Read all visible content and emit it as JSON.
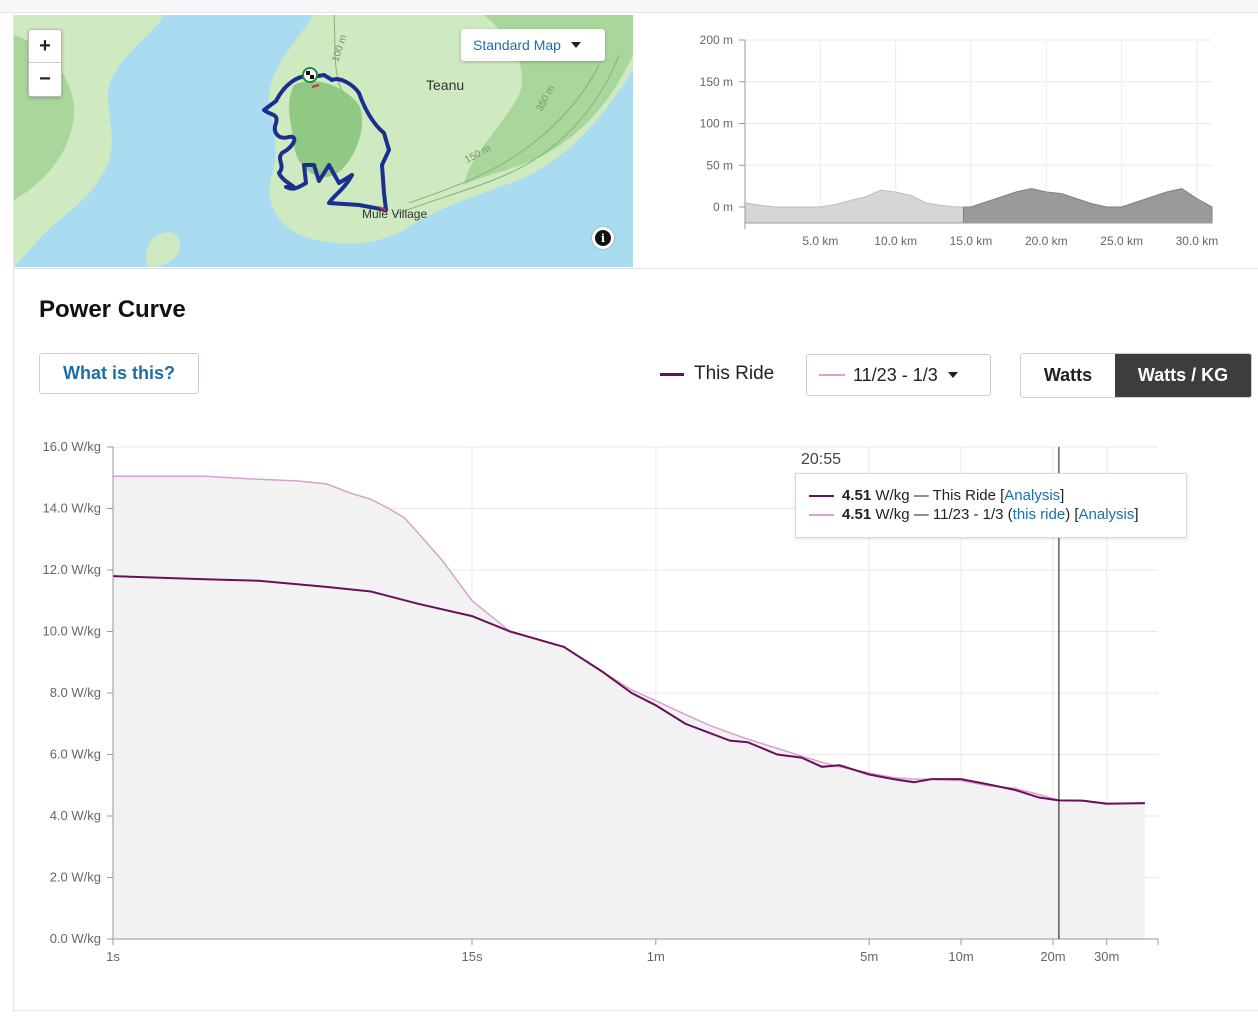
{
  "map": {
    "zoom_in": "+",
    "zoom_out": "−",
    "style_select": "Standard Map",
    "labels": {
      "town1": "Teanu",
      "town2": "Mule Village",
      "contour1": "100 m",
      "contour2": "350 m",
      "contour3": "150 m"
    },
    "info_icon": "i",
    "icons": [
      "zoom-in-icon",
      "zoom-out-icon",
      "chevron-down-icon",
      "info-icon",
      "checkered-flag-icon"
    ]
  },
  "elevation": {
    "y_ticks": [
      "200 m",
      "150 m",
      "100 m",
      "50 m",
      "0 m"
    ],
    "x_ticks": [
      "5.0 km",
      "10.0 km",
      "15.0 km",
      "20.0 km",
      "25.0 km",
      "30.0 km"
    ]
  },
  "power_curve": {
    "title": "Power Curve",
    "what_button": "What is this?",
    "legend_this_ride": "This Ride",
    "range_select": "11/23 - 1/3",
    "toggle_watts": "Watts",
    "toggle_wkg": "Watts / KG",
    "tooltip": {
      "time": "20:55",
      "row1_value": "4.51",
      "row1_unit": "W/kg — This Ride [",
      "row1_link": "Analysis",
      "row1_end": "]",
      "row2_value": "4.51",
      "row2_unit": "W/kg — 11/23 - 1/3 (",
      "row2_link1": "this ride",
      "row2_mid": ") [",
      "row2_link2": "Analysis",
      "row2_end": "]"
    },
    "colors": {
      "this_ride": "#6b0f5a",
      "range": "#d9a1cf",
      "active_toggle": "#3d3d40",
      "link": "#1d6fa8"
    }
  },
  "chart_data": [
    {
      "type": "area",
      "title": "",
      "xlabel": "",
      "ylabel": "",
      "y_unit": "m",
      "x_unit": "km",
      "ylim": [
        0,
        200
      ],
      "xlim": [
        0,
        31
      ],
      "grid": true,
      "x": [
        0,
        1,
        2,
        3,
        4,
        5,
        6,
        7,
        8,
        9,
        10,
        11,
        12,
        13,
        14,
        15,
        16,
        17,
        18,
        19,
        20,
        21,
        22,
        23,
        24,
        25,
        26,
        27,
        28,
        29,
        30,
        31
      ],
      "values": [
        5,
        2,
        0,
        0,
        0,
        0,
        3,
        8,
        12,
        20,
        18,
        14,
        5,
        2,
        0,
        0,
        6,
        12,
        18,
        22,
        18,
        16,
        10,
        4,
        0,
        0,
        6,
        12,
        18,
        22,
        10,
        0
      ],
      "highlight_from": 14.5
    },
    {
      "type": "line",
      "title": "Power Curve",
      "xlabel": "",
      "ylabel": "",
      "x_scale": "log",
      "y_unit": "W/kg",
      "ylim": [
        0,
        16
      ],
      "y_ticks": [
        0,
        2,
        4,
        6,
        8,
        10,
        12,
        14,
        16
      ],
      "y_tick_labels": [
        "0.0 W/kg",
        "2.0 W/kg",
        "4.0 W/kg",
        "6.0 W/kg",
        "8.0 W/kg",
        "10.0 W/kg",
        "12.0 W/kg",
        "14.0 W/kg",
        "16.0 W/kg"
      ],
      "x_ticks": [
        1,
        15,
        60,
        300,
        600,
        1200,
        1800
      ],
      "x_tick_labels": [
        "1s",
        "15s",
        "1m",
        "5m",
        "10m",
        "20m",
        "30m"
      ],
      "cursor_x": 1255,
      "series": [
        {
          "name": "This Ride",
          "x": [
            1,
            2,
            3,
            5,
            7,
            10,
            15,
            20,
            30,
            40,
            50,
            60,
            75,
            90,
            105,
            120,
            150,
            180,
            210,
            240,
            300,
            360,
            420,
            480,
            600,
            720,
            900,
            1080,
            1255,
            1500,
            1800,
            2400
          ],
          "y": [
            11.8,
            11.7,
            11.65,
            11.45,
            11.3,
            10.9,
            10.5,
            10.0,
            9.5,
            8.7,
            8.0,
            7.6,
            7.0,
            6.7,
            6.45,
            6.4,
            6.0,
            5.9,
            5.6,
            5.65,
            5.35,
            5.2,
            5.1,
            5.2,
            5.2,
            5.05,
            4.85,
            4.6,
            4.51,
            4.5,
            4.4,
            4.42
          ]
        },
        {
          "name": "11/23 - 1/3",
          "x": [
            1,
            2,
            3,
            4,
            5,
            6,
            7,
            8,
            9,
            10,
            12,
            15,
            20,
            30,
            40,
            50,
            60,
            75,
            90,
            105,
            120,
            150,
            180,
            210,
            240,
            300,
            360,
            420,
            480,
            600,
            720,
            900,
            1080,
            1255,
            1500,
            1800,
            2400
          ],
          "y": [
            15.05,
            15.05,
            14.95,
            14.9,
            14.8,
            14.5,
            14.3,
            14.0,
            13.7,
            13.2,
            12.3,
            11.0,
            10.0,
            9.5,
            8.7,
            8.1,
            7.75,
            7.3,
            6.95,
            6.7,
            6.5,
            6.2,
            5.95,
            5.75,
            5.6,
            5.4,
            5.25,
            5.2,
            5.2,
            5.15,
            5.0,
            4.9,
            4.7,
            4.51,
            4.5,
            4.42,
            4.4
          ]
        }
      ]
    }
  ]
}
